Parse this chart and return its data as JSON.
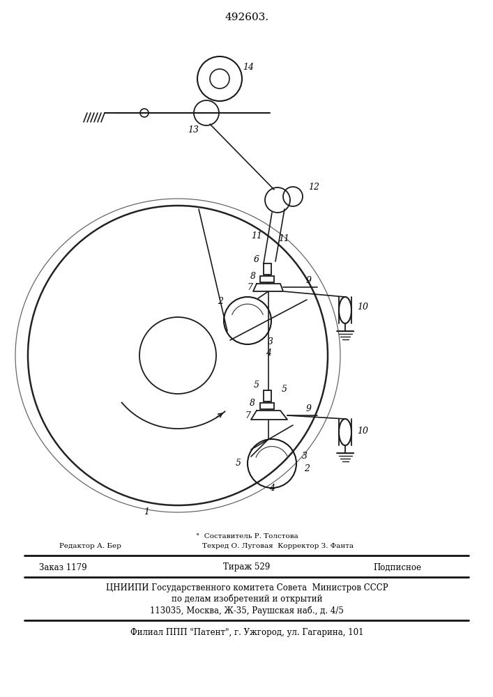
{
  "patent_number": "492603.",
  "bg_color": "#ffffff",
  "line_color": "#1a1a1a",
  "footer_redaktor": "Редактор А. Бер",
  "footer_sostav": "°  Составитель Р. Толстова",
  "footer_tehred": "Техред О. Луговая  Корректор З. Фанта",
  "footer_zakaz": "Заказ 1179",
  "footer_tirazh": "Тираж 529",
  "footer_podpisnoe": "Подписное",
  "footer_org": "ЦНИИПИ Государственного комитета Совета  Министров СССР",
  "footer_org2": "по делам изобретений и открытий",
  "footer_addr": "113035, Москва, Ж-35, Раушская наб., д. 4/5",
  "footer_filial": "Филиал ППП \"Патент\", г. Ужгород, ул. Гагарина, 101"
}
